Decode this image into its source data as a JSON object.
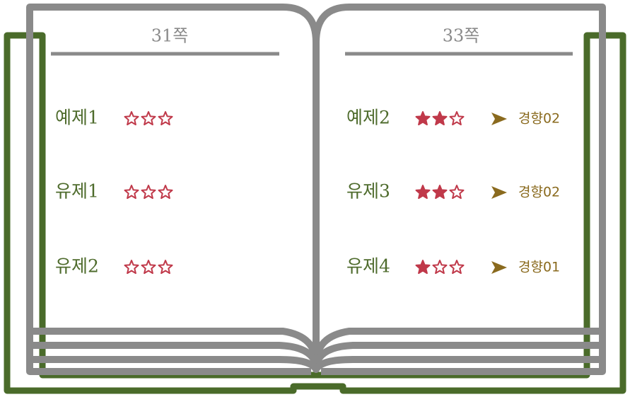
{
  "star_max": 3,
  "pages": [
    {
      "title": "31쪽",
      "items": [
        {
          "name": "예제1",
          "stars": 0
        },
        {
          "name": "유제1",
          "stars": 0
        },
        {
          "name": "유제2",
          "stars": 0
        }
      ]
    },
    {
      "title": "33쪽",
      "items": [
        {
          "name": "예제2",
          "stars": 2,
          "trend": "경향02"
        },
        {
          "name": "유제3",
          "stars": 2,
          "trend": "경향02"
        },
        {
          "name": "유제4",
          "stars": 1,
          "trend": "경향01"
        }
      ]
    }
  ]
}
